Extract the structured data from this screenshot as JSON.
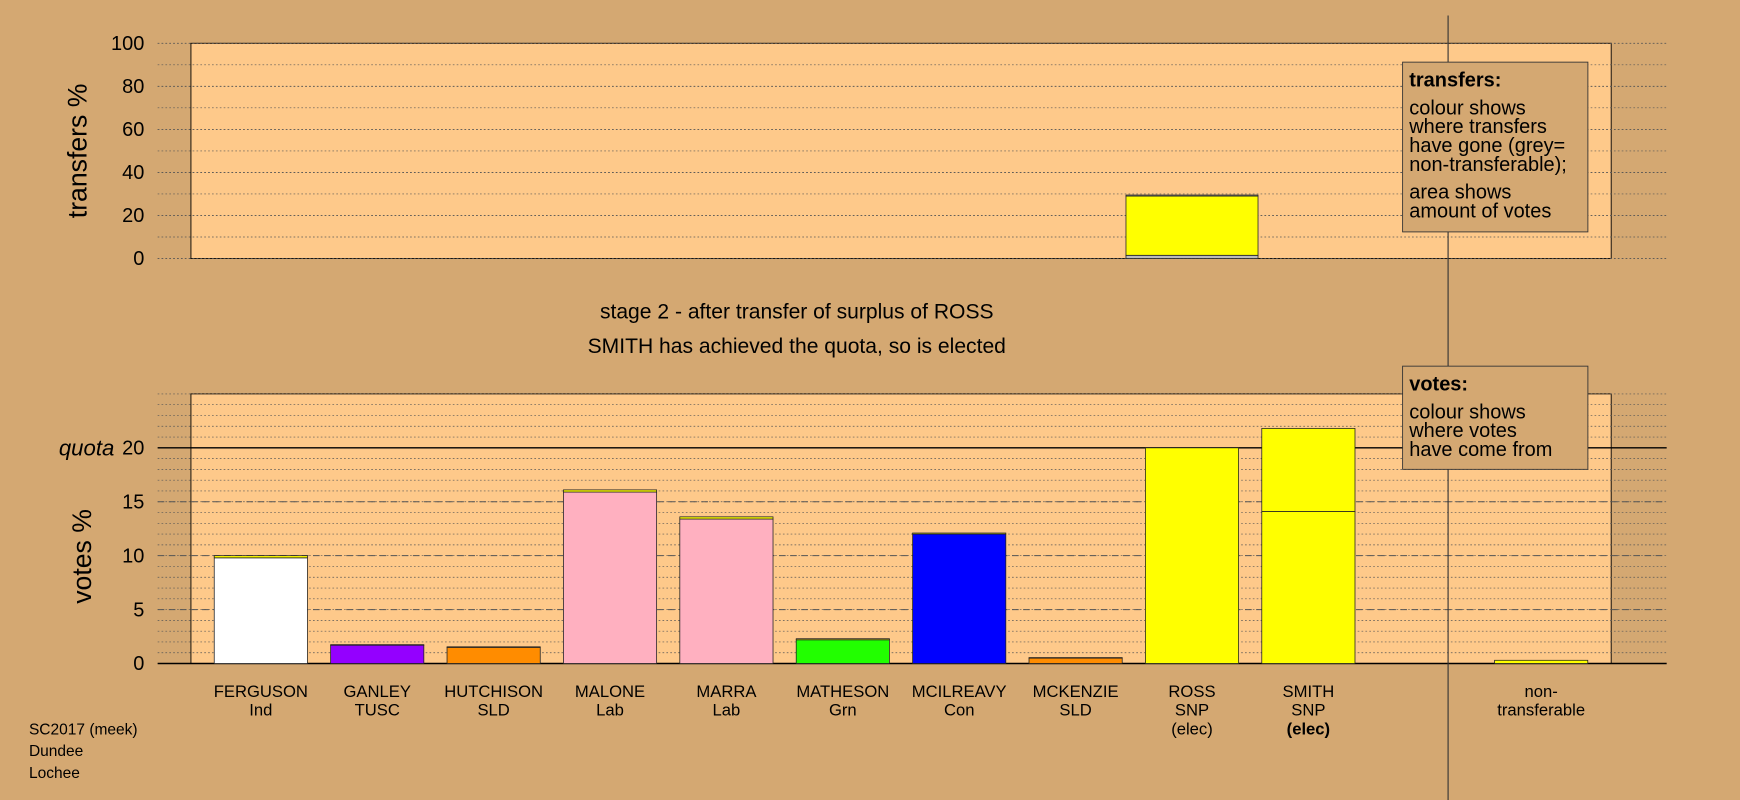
{
  "headings": [
    "stage 2 - after transfer of surplus of ROSS",
    "SMITH has achieved the quota, so is elected"
  ],
  "legends": [
    {
      "heading": "transfers:",
      "paragraphs": [
        [
          "colour shows",
          "where transfers",
          "have gone (grey=",
          "non-transferable);"
        ],
        [
          "area shows",
          "amount of votes"
        ]
      ]
    },
    {
      "heading": "votes:",
      "paragraphs": [
        [
          "colour shows",
          "where votes",
          "have come from"
        ]
      ]
    }
  ],
  "footer": [
    "SC2017 (meek)",
    "Dundee",
    "Lochee"
  ],
  "chart_data": [
    {
      "type": "bar",
      "stacked": true,
      "ylabel": "transfers %",
      "ylim": [
        0,
        100
      ],
      "yticks": [
        0,
        20,
        40,
        60,
        80,
        100
      ],
      "minor_step": 10,
      "grid": true,
      "series": [
        {
          "color": "#bbbbbb",
          "values": [
            null,
            null,
            null,
            null,
            null,
            null,
            null,
            null,
            1.5,
            null,
            null
          ]
        },
        {
          "color": "#ffff00",
          "values": [
            null,
            null,
            null,
            null,
            null,
            null,
            null,
            null,
            27.5,
            null,
            null
          ]
        },
        {
          "color": "#999999",
          "values": [
            null,
            null,
            null,
            null,
            null,
            null,
            null,
            null,
            0.5,
            null,
            null
          ]
        }
      ]
    },
    {
      "type": "bar",
      "stacked": true,
      "ylabel": "votes %",
      "ylim": [
        0,
        25
      ],
      "yticks": [
        0,
        5,
        10,
        15,
        20
      ],
      "minor_step": 1,
      "grid": true,
      "quota": 20,
      "quota_label": "quota",
      "categories": [
        {
          "lines": [
            "FERGUSON",
            "Ind"
          ]
        },
        {
          "lines": [
            "GANLEY",
            "TUSC"
          ]
        },
        {
          "lines": [
            "HUTCHISON",
            "SLD"
          ]
        },
        {
          "lines": [
            "MALONE",
            "Lab"
          ]
        },
        {
          "lines": [
            "MARRA",
            "Lab"
          ]
        },
        {
          "lines": [
            "MATHESON",
            "Grn"
          ]
        },
        {
          "lines": [
            "MCILREAVY",
            "Con"
          ]
        },
        {
          "lines": [
            "MCKENZIE",
            "SLD"
          ]
        },
        {
          "lines": [
            "ROSS",
            "SNP",
            "(elec)"
          ]
        },
        {
          "lines": [
            "SMITH",
            "SNP",
            "(elec)"
          ],
          "bold_last": true
        },
        {
          "lines": [
            "non-",
            "transferable"
          ]
        }
      ],
      "series": [
        {
          "colors": [
            "#ffffff",
            "#9400ff",
            "#ff8c00",
            "#ffb0c0",
            "#ffb0c0",
            "#22ff00",
            "#0000ff",
            "#ff8c00",
            "#ffff00",
            "#ffff00",
            null
          ],
          "values": [
            9.8,
            1.7,
            1.5,
            15.9,
            13.4,
            2.2,
            12.0,
            0.5,
            20.0,
            14.1,
            null
          ]
        },
        {
          "color": "#ffff00",
          "values": [
            0.2,
            0.05,
            0.05,
            0.2,
            0.2,
            0.1,
            0.1,
            0.05,
            null,
            7.7,
            0.3
          ]
        }
      ]
    }
  ]
}
